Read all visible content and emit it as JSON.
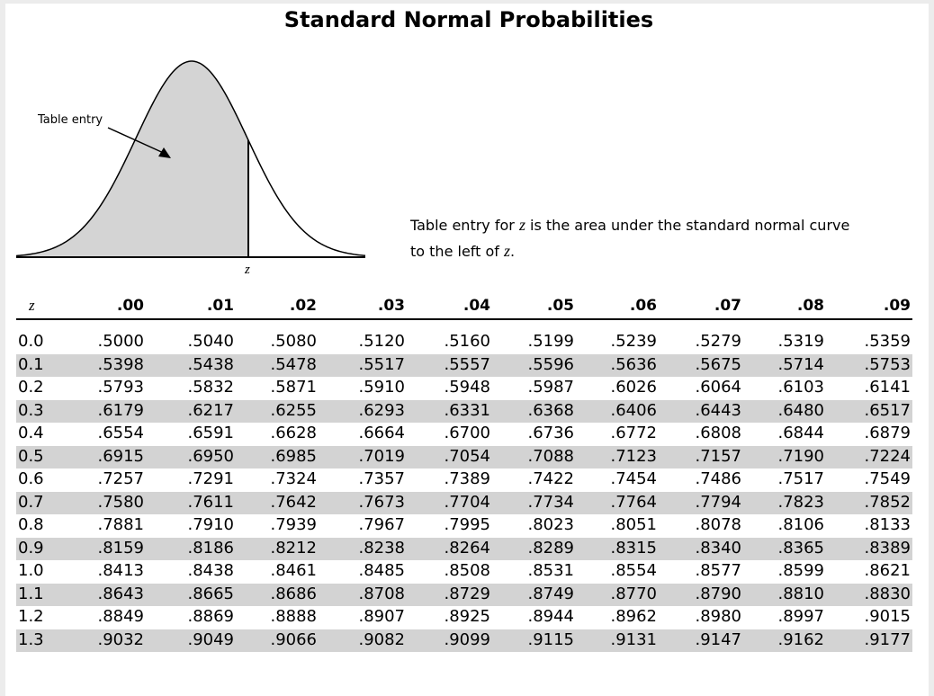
{
  "title": "Standard Normal Probabilities",
  "figure": {
    "label": "Table entry",
    "z_label": "z"
  },
  "description": {
    "part1": "Table entry for ",
    "z1": "z",
    "part2": " is the area under the standard normal curve",
    "part3": "to the left of ",
    "z2": "z",
    "part4": "."
  },
  "table": {
    "z_header": "z",
    "columns": [
      ".00",
      ".01",
      ".02",
      ".03",
      ".04",
      ".05",
      ".06",
      ".07",
      ".08",
      ".09"
    ],
    "rows": [
      {
        "z": "0.0",
        "values": [
          ".5000",
          ".5040",
          ".5080",
          ".5120",
          ".5160",
          ".5199",
          ".5239",
          ".5279",
          ".5319",
          ".5359"
        ]
      },
      {
        "z": "0.1",
        "values": [
          ".5398",
          ".5438",
          ".5478",
          ".5517",
          ".5557",
          ".5596",
          ".5636",
          ".5675",
          ".5714",
          ".5753"
        ]
      },
      {
        "z": "0.2",
        "values": [
          ".5793",
          ".5832",
          ".5871",
          ".5910",
          ".5948",
          ".5987",
          ".6026",
          ".6064",
          ".6103",
          ".6141"
        ]
      },
      {
        "z": "0.3",
        "values": [
          ".6179",
          ".6217",
          ".6255",
          ".6293",
          ".6331",
          ".6368",
          ".6406",
          ".6443",
          ".6480",
          ".6517"
        ]
      },
      {
        "z": "0.4",
        "values": [
          ".6554",
          ".6591",
          ".6628",
          ".6664",
          ".6700",
          ".6736",
          ".6772",
          ".6808",
          ".6844",
          ".6879"
        ]
      },
      {
        "z": "0.5",
        "values": [
          ".6915",
          ".6950",
          ".6985",
          ".7019",
          ".7054",
          ".7088",
          ".7123",
          ".7157",
          ".7190",
          ".7224"
        ]
      },
      {
        "z": "0.6",
        "values": [
          ".7257",
          ".7291",
          ".7324",
          ".7357",
          ".7389",
          ".7422",
          ".7454",
          ".7486",
          ".7517",
          ".7549"
        ]
      },
      {
        "z": "0.7",
        "values": [
          ".7580",
          ".7611",
          ".7642",
          ".7673",
          ".7704",
          ".7734",
          ".7764",
          ".7794",
          ".7823",
          ".7852"
        ]
      },
      {
        "z": "0.8",
        "values": [
          ".7881",
          ".7910",
          ".7939",
          ".7967",
          ".7995",
          ".8023",
          ".8051",
          ".8078",
          ".8106",
          ".8133"
        ]
      },
      {
        "z": "0.9",
        "values": [
          ".8159",
          ".8186",
          ".8212",
          ".8238",
          ".8264",
          ".8289",
          ".8315",
          ".8340",
          ".8365",
          ".8389"
        ]
      },
      {
        "z": "1.0",
        "values": [
          ".8413",
          ".8438",
          ".8461",
          ".8485",
          ".8508",
          ".8531",
          ".8554",
          ".8577",
          ".8599",
          ".8621"
        ]
      },
      {
        "z": "1.1",
        "values": [
          ".8643",
          ".8665",
          ".8686",
          ".8708",
          ".8729",
          ".8749",
          ".8770",
          ".8790",
          ".8810",
          ".8830"
        ]
      },
      {
        "z": "1.2",
        "values": [
          ".8849",
          ".8869",
          ".8888",
          ".8907",
          ".8925",
          ".8944",
          ".8962",
          ".8980",
          ".8997",
          ".9015"
        ]
      },
      {
        "z": "1.3",
        "values": [
          ".9032",
          ".9049",
          ".9066",
          ".9082",
          ".9099",
          ".9115",
          ".9131",
          ".9147",
          ".9162",
          ".9177"
        ]
      }
    ]
  }
}
